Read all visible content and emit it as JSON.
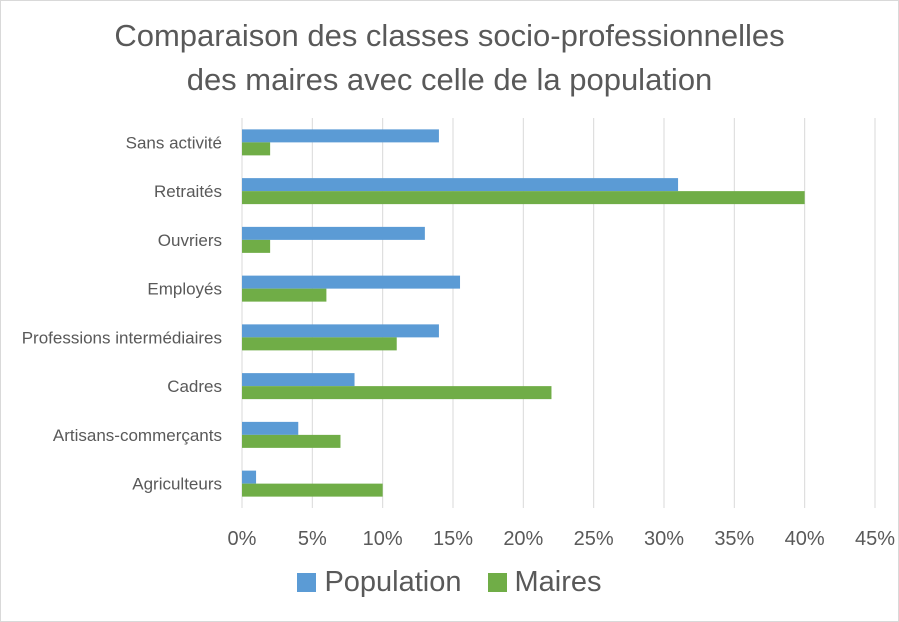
{
  "chart_data": {
    "type": "bar",
    "orientation": "horizontal",
    "title_lines": [
      "Comparaison des classes socio-professionnelles",
      "des maires avec celle de la population"
    ],
    "categories": [
      "Sans activité",
      "Retraités",
      "Ouvriers",
      "Employés",
      "Professions intermédiaires",
      "Cadres",
      "Artisans-commerçants",
      "Agriculteurs"
    ],
    "series": [
      {
        "name": "Population",
        "color": "#5b9bd5",
        "values": [
          14,
          31,
          13,
          15.5,
          14,
          8,
          4,
          1
        ]
      },
      {
        "name": "Maires",
        "color": "#70ad47",
        "values": [
          2,
          40,
          2,
          6,
          11,
          22,
          7,
          10
        ]
      }
    ],
    "xlim": [
      0,
      45
    ],
    "xticks": [
      "0%",
      "5%",
      "10%",
      "15%",
      "20%",
      "25%",
      "30%",
      "35%",
      "40%",
      "45%"
    ],
    "grid": true,
    "legend_position": "bottom"
  }
}
